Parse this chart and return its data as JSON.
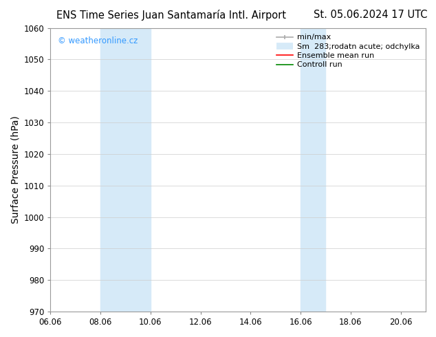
{
  "title_left": "ENS Time Series Juan Santamaría Intl. Airport",
  "title_right": "St. 05.06.2024 17 UTC",
  "ylabel": "Surface Pressure (hPa)",
  "xlabel": "",
  "ylim": [
    970,
    1060
  ],
  "yticks": [
    970,
    980,
    990,
    1000,
    1010,
    1020,
    1030,
    1040,
    1050,
    1060
  ],
  "xlim_days": [
    6.0,
    21.0
  ],
  "xtick_positions_days": [
    6,
    8,
    10,
    12,
    14,
    16,
    18,
    20
  ],
  "xtick_labels": [
    "06.06",
    "08.06",
    "10.06",
    "12.06",
    "14.06",
    "16.06",
    "18.06",
    "20.06"
  ],
  "bg_color": "#ffffff",
  "plot_bg_color": "#ffffff",
  "shaded_regions": [
    {
      "x_start": 8.0,
      "x_end": 10.0,
      "color": "#d6eaf8"
    },
    {
      "x_start": 16.0,
      "x_end": 17.0,
      "color": "#d6eaf8"
    }
  ],
  "watermark_text": "© weatheronline.cz",
  "watermark_color": "#3399ff",
  "grid_color": "#cccccc",
  "tick_label_fontsize": 8.5,
  "axis_label_fontsize": 10,
  "title_fontsize": 10.5,
  "legend_fontsize": 8.0,
  "legend_min_max_color": "#aaaaaa",
  "legend_band_color": "#d6eaf8",
  "legend_ensemble_color": "#ff0000",
  "legend_control_color": "#008800"
}
